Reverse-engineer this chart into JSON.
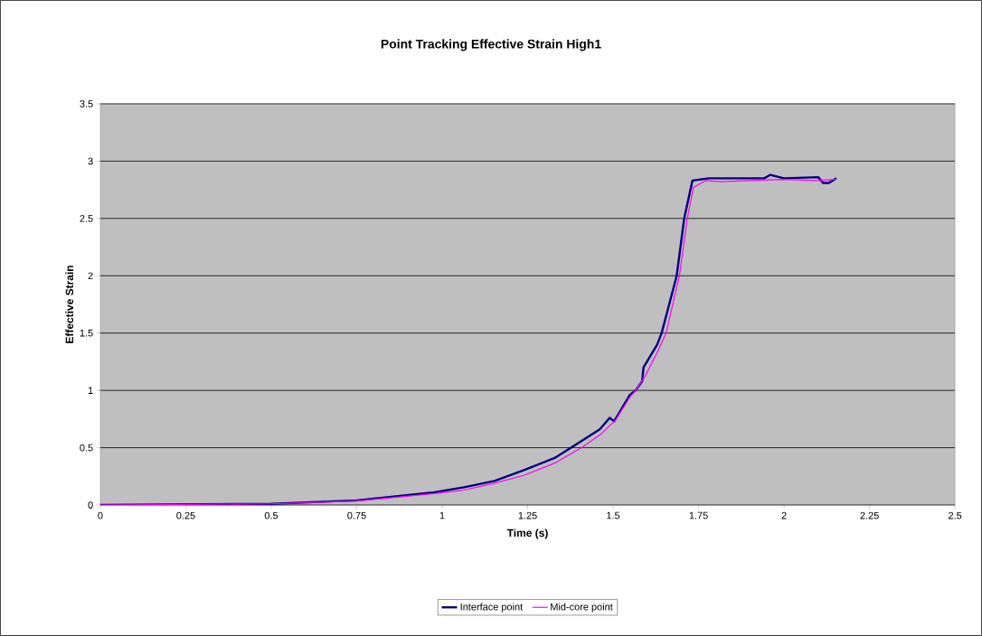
{
  "chart_data": {
    "type": "line",
    "title": "Point Tracking Effective Strain High1",
    "xlabel": "Time (s)",
    "ylabel": "Effective Strain",
    "xlim": [
      0,
      2.5
    ],
    "ylim": [
      0,
      3.5
    ],
    "xticks": [
      0,
      0.25,
      0.5,
      0.75,
      1,
      1.25,
      1.5,
      1.75,
      2,
      2.25,
      2.5
    ],
    "yticks": [
      0,
      0.5,
      1,
      1.5,
      2,
      2.5,
      3,
      3.5
    ],
    "grid": "y",
    "legend": "bottom",
    "marker": "none",
    "line_style": "solid",
    "series": [
      {
        "name": "Interface point",
        "color": "#000080",
        "x": [
          0,
          0.5,
          0.75,
          0.977,
          1.064,
          1.153,
          1.241,
          1.329,
          1.377,
          1.461,
          1.49,
          1.503,
          1.549,
          1.566,
          1.585,
          1.589,
          1.593,
          1.629,
          1.642,
          1.686,
          1.708,
          1.732,
          1.78,
          1.942,
          1.96,
          2.0,
          2.1,
          2.114,
          2.131,
          2.153
        ],
        "values": [
          0,
          0.01,
          0.04,
          0.11,
          0.155,
          0.21,
          0.307,
          0.41,
          0.5,
          0.66,
          0.76,
          0.73,
          0.96,
          1.0,
          1.08,
          1.2,
          1.22,
          1.4,
          1.5,
          2.0,
          2.5,
          2.83,
          2.85,
          2.85,
          2.88,
          2.85,
          2.86,
          2.81,
          2.81,
          2.85
        ]
      },
      {
        "name": "Mid-core point",
        "color": "#ff00ff",
        "x": [
          0,
          0.5,
          0.75,
          0.977,
          1.064,
          1.153,
          1.241,
          1.329,
          1.408,
          1.461,
          1.507,
          1.549,
          1.566,
          1.593,
          1.629,
          1.655,
          1.694,
          1.717,
          1.735,
          1.77,
          1.814,
          1.9,
          2.0,
          2.1,
          2.153
        ],
        "values": [
          0,
          0.01,
          0.035,
          0.1,
          0.13,
          0.19,
          0.26,
          0.365,
          0.5,
          0.61,
          0.74,
          0.94,
          1.0,
          1.12,
          1.33,
          1.5,
          2.0,
          2.5,
          2.77,
          2.83,
          2.82,
          2.83,
          2.84,
          2.83,
          2.84
        ]
      }
    ]
  }
}
